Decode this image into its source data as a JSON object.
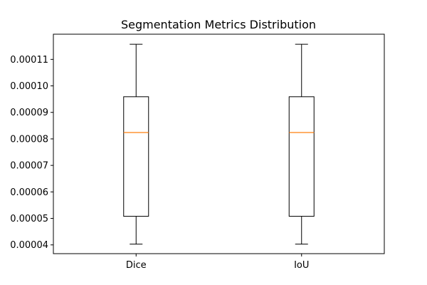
{
  "chart_data": {
    "type": "box",
    "title": "Segmentation Metrics Distribution",
    "xlabel": "",
    "ylabel": "",
    "categories": [
      "Dice",
      "IoU"
    ],
    "boxes": [
      {
        "name": "Dice",
        "whisker_low": 4.03e-05,
        "q1": 5.08e-05,
        "median": 8.24e-05,
        "q3": 9.59e-05,
        "whisker_high": 0.0001157
      },
      {
        "name": "IoU",
        "whisker_low": 4.03e-05,
        "q1": 5.08e-05,
        "median": 8.24e-05,
        "q3": 9.59e-05,
        "whisker_high": 0.0001157
      }
    ],
    "ylim": [
      3.67e-05,
      0.0001195
    ],
    "yticks": [
      4e-05,
      5e-05,
      6e-05,
      7e-05,
      8e-05,
      9e-05,
      0.0001,
      0.00011
    ],
    "ytick_labels": [
      "0.00004",
      "0.00005",
      "0.00006",
      "0.00007",
      "0.00008",
      "0.00009",
      "0.00010",
      "0.00011"
    ],
    "grid": false,
    "colors": {
      "box": "#000000",
      "median": "#ff7f0e",
      "background": "#ffffff"
    }
  }
}
